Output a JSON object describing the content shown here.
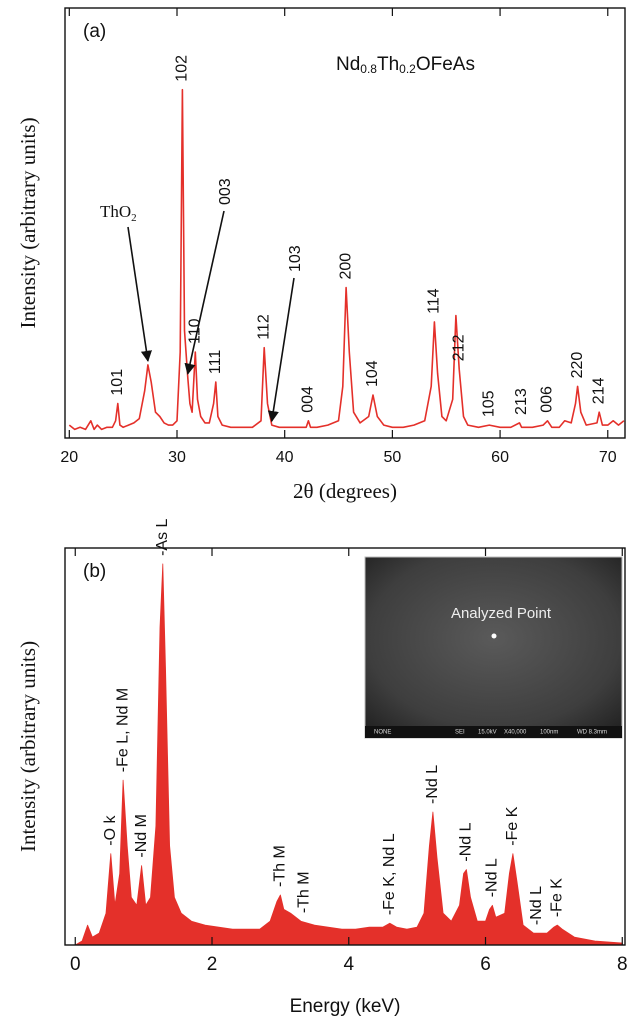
{
  "chart_data": [
    {
      "type": "line",
      "panel": "(a)",
      "formula": [
        "Nd",
        "0.8",
        "Th",
        "0.2",
        "OFeAs"
      ],
      "xlabel": "2θ (degrees)",
      "ylabel": "Intensity (arbitrary units)",
      "color": "#e4302a",
      "xlim": [
        19.6,
        71.6
      ],
      "ylim": [
        0,
        100
      ],
      "xticks": [
        20,
        30,
        40,
        50,
        60,
        70
      ],
      "x": [
        20,
        20.5,
        21,
        21.5,
        22,
        22.3,
        22.6,
        23,
        23.5,
        24,
        24.3,
        24.5,
        24.7,
        25,
        25.5,
        26,
        26.5,
        27,
        27.3,
        27.6,
        28,
        28.4,
        28.8,
        29.2,
        29.6,
        30,
        30.3,
        30.5,
        30.7,
        31,
        31.2,
        31.4,
        31.7,
        31.9,
        32.2,
        32.6,
        33,
        33.4,
        33.6,
        33.8,
        34.2,
        35,
        36,
        37,
        37.8,
        38.1,
        38.4,
        38.8,
        39.5,
        40,
        41,
        42,
        42.2,
        42.4,
        43,
        44,
        45,
        45.4,
        45.7,
        46,
        46.4,
        47,
        47.8,
        48.2,
        48.6,
        49.2,
        50,
        51,
        52,
        53,
        53.6,
        53.9,
        54.2,
        54.6,
        55,
        55.6,
        55.9,
        56.2,
        56.6,
        57,
        58,
        59,
        60,
        61,
        61.8,
        62,
        62.3,
        63,
        64,
        64.4,
        64.8,
        65.5,
        66,
        66.6,
        67,
        67.2,
        67.5,
        68,
        69,
        69.2,
        69.5,
        70,
        70.5,
        71,
        71.5
      ],
      "values": [
        3,
        2,
        2.5,
        2,
        4,
        2,
        3,
        2,
        2.5,
        2.5,
        4,
        8,
        3,
        2.5,
        3,
        3.5,
        4.5,
        11,
        17,
        13,
        6,
        5,
        3.5,
        3,
        3,
        4,
        20,
        81,
        25,
        14,
        8,
        6,
        20,
        9,
        5,
        3.5,
        3.5,
        8,
        13,
        5,
        3,
        2.5,
        2.5,
        2.5,
        4,
        21,
        8,
        3,
        2.5,
        2.5,
        2.5,
        2.5,
        4,
        2.5,
        2.5,
        3,
        4,
        12,
        35,
        20,
        6,
        3.5,
        5,
        10,
        5,
        3,
        2.5,
        2.5,
        3,
        4,
        12,
        27,
        15,
        5,
        4,
        9,
        28.5,
        16,
        5,
        3,
        2.5,
        3,
        2.5,
        2.5,
        3.5,
        2.5,
        2.5,
        2.5,
        3,
        4,
        2.5,
        2.5,
        4,
        3.5,
        8,
        12,
        6,
        3,
        3.5,
        6,
        3,
        3,
        4,
        3,
        4
      ],
      "peak_labels": [
        {
          "text": "101",
          "x": 24.5
        },
        {
          "text": "102",
          "x": 30.5
        },
        {
          "text": "110",
          "x": 31.7
        },
        {
          "text": "111",
          "x": 33.6
        },
        {
          "text": "112",
          "x": 38.1
        },
        {
          "text": "004",
          "x": 42.2
        },
        {
          "text": "200",
          "x": 45.7
        },
        {
          "text": "104",
          "x": 48.2
        },
        {
          "text": "114",
          "x": 53.9
        },
        {
          "text": "212",
          "x": 56.2
        },
        {
          "text": "105",
          "x": 59
        },
        {
          "text": "213",
          "x": 62
        },
        {
          "text": "006",
          "x": 64.4
        },
        {
          "text": "220",
          "x": 67.2
        },
        {
          "text": "214",
          "x": 69.2
        }
      ],
      "arrow_labels": [
        {
          "parts": [
            "ThO",
            "2"
          ],
          "x": 27.3
        },
        {
          "parts": [
            "003"
          ],
          "x": 31
        },
        {
          "parts": [
            "103"
          ],
          "x": 38.8
        }
      ]
    },
    {
      "type": "area",
      "panel": "(b)",
      "xlabel": "Energy (keV)",
      "ylabel": "Intensity (arbitrary units)",
      "color": "#e4302a",
      "xlim": [
        -0.15,
        8.04
      ],
      "ylim": [
        0,
        100
      ],
      "xticks": [
        0,
        2,
        4,
        6,
        8
      ],
      "x": [
        0,
        0.1,
        0.18,
        0.25,
        0.35,
        0.45,
        0.52,
        0.58,
        0.65,
        0.7,
        0.76,
        0.82,
        0.9,
        0.97,
        1.03,
        1.1,
        1.18,
        1.24,
        1.28,
        1.32,
        1.38,
        1.45,
        1.55,
        1.7,
        1.9,
        2.1,
        2.3,
        2.5,
        2.7,
        2.85,
        2.95,
        3,
        3.05,
        3.15,
        3.3,
        3.5,
        3.7,
        3.9,
        4.1,
        4.3,
        4.5,
        4.6,
        4.7,
        4.85,
        5,
        5.1,
        5.18,
        5.23,
        5.29,
        5.38,
        5.5,
        5.62,
        5.68,
        5.72,
        5.78,
        5.88,
        6,
        6.06,
        6.1,
        6.15,
        6.28,
        6.35,
        6.4,
        6.46,
        6.55,
        6.7,
        6.9,
        7,
        7.05,
        7.12,
        7.3,
        7.6,
        8
      ],
      "values": [
        0,
        1,
        5,
        2,
        3,
        8,
        23,
        10,
        18,
        41.5,
        25,
        12,
        10,
        20,
        10,
        12,
        30,
        80,
        96,
        70,
        25,
        12,
        8,
        6,
        5,
        4.5,
        4,
        4,
        4,
        6,
        11,
        12.6,
        9,
        8,
        6,
        5,
        4.5,
        4,
        4,
        4.5,
        4.5,
        5.5,
        4.5,
        4,
        4.5,
        8,
        25,
        33.5,
        22,
        8,
        6,
        10,
        18,
        19,
        12,
        6,
        6,
        9,
        10,
        7,
        8,
        18,
        23,
        16,
        5,
        3,
        3,
        4.5,
        5,
        4,
        2,
        1,
        0.5
      ],
      "peak_labels": [
        {
          "text": "-O k",
          "x": 0.52
        },
        {
          "text": "-Fe L, Nd M",
          "x": 0.7
        },
        {
          "text": "-Nd M",
          "x": 0.97
        },
        {
          "text": "-As L",
          "x": 1.28
        },
        {
          "text": "-Th M",
          "x": 3
        },
        {
          "text": "-Th M",
          "x": 3.35
        },
        {
          "text": "-Fe K, Nd L",
          "x": 4.6
        },
        {
          "text": "-Nd L",
          "x": 5.23
        },
        {
          "text": "-Nd L",
          "x": 5.72
        },
        {
          "text": "-Nd L",
          "x": 6.1
        },
        {
          "text": "-Fe K",
          "x": 6.4
        },
        {
          "text": "-Nd L",
          "x": 6.75
        },
        {
          "text": "-Fe K",
          "x": 7.05
        }
      ],
      "inset": {
        "label": "Analyzed Point",
        "footer": [
          "NONE",
          "SEI",
          "15.0kV",
          "X40,000",
          "100nm",
          "WD 8.3mm"
        ]
      }
    }
  ]
}
